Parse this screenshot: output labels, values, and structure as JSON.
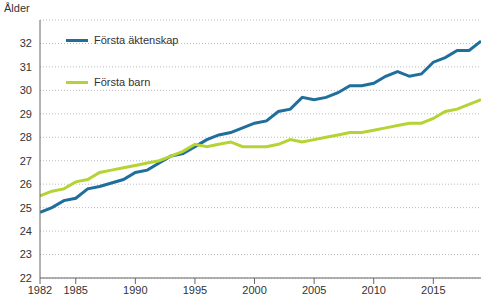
{
  "chart_data": {
    "type": "line",
    "y_label": "Ålder",
    "x": [
      1982,
      1983,
      1984,
      1985,
      1986,
      1987,
      1988,
      1989,
      1990,
      1991,
      1992,
      1993,
      1994,
      1995,
      1996,
      1997,
      1998,
      1999,
      2000,
      2001,
      2002,
      2003,
      2004,
      2005,
      2006,
      2007,
      2008,
      2009,
      2010,
      2011,
      2012,
      2013,
      2014,
      2015,
      2016,
      2017,
      2018,
      2019
    ],
    "series": [
      {
        "name": "Första äktenskap",
        "color": "#1f6e9c",
        "values": [
          24.8,
          25.0,
          25.3,
          25.4,
          25.8,
          25.9,
          26.05,
          26.2,
          26.5,
          26.6,
          26.9,
          27.2,
          27.3,
          27.6,
          27.9,
          28.1,
          28.2,
          28.4,
          28.6,
          28.7,
          29.1,
          29.2,
          29.7,
          29.6,
          29.7,
          29.9,
          30.2,
          30.2,
          30.3,
          30.6,
          30.8,
          30.6,
          30.7,
          31.2,
          31.4,
          31.7,
          31.7,
          32.1
        ]
      },
      {
        "name": "Första barn",
        "color": "#b5d334",
        "values": [
          25.5,
          25.7,
          25.8,
          26.1,
          26.2,
          26.5,
          26.6,
          26.7,
          26.8,
          26.9,
          27.0,
          27.2,
          27.4,
          27.7,
          27.6,
          27.7,
          27.8,
          27.6,
          27.6,
          27.6,
          27.7,
          27.9,
          27.8,
          27.9,
          28.0,
          28.1,
          28.2,
          28.2,
          28.3,
          28.4,
          28.5,
          28.6,
          28.6,
          28.8,
          29.1,
          29.2,
          29.4,
          29.6
        ]
      }
    ],
    "xlim": [
      1982,
      2019
    ],
    "xticks": [
      1982,
      1985,
      1990,
      1995,
      2000,
      2005,
      2010,
      2015
    ],
    "ylim": [
      22,
      33
    ],
    "yticks": [
      22,
      23,
      24,
      25,
      26,
      27,
      28,
      29,
      30,
      31,
      32
    ],
    "grid": true,
    "legend": "upper left"
  }
}
